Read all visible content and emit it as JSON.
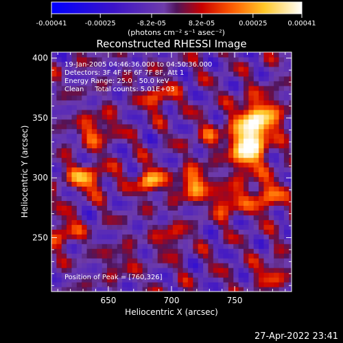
{
  "chart_data": {
    "type": "heatmap",
    "title": "Reconstructed RHESSI Image",
    "xlabel": "Heliocentric X (arcsec)",
    "ylabel": "Heliocentric Y (arcsec)",
    "xlim": [
      605,
      795
    ],
    "ylim": [
      205,
      405
    ],
    "xticks": [
      650,
      700,
      750
    ],
    "yticks": [
      250,
      300,
      350,
      400
    ],
    "colorbar": {
      "ticks": [
        "-0.00041",
        "-0.00025",
        "-8.2e-05",
        "8.2e-05",
        "0.00025",
        "0.00041"
      ],
      "range": [
        -0.00041,
        0.00041
      ],
      "unit_label": "(photons cm⁻² s⁻¹ asec⁻²)"
    },
    "annotations": [
      "19-Jan-2005 04:46:36.000 to 04:50:36.000",
      "Detectors: 3F 4F 5F 6F 7F 8F, Att 1",
      "Energy Range: 25.0 - 50.0 keV",
      "Clean     Total counts: 5.01E+03"
    ],
    "peak_label": "Position of Peak = [760,326]",
    "peak": {
      "x": 760,
      "y": 326
    },
    "sources": [
      {
        "x": 760,
        "y": 326,
        "sx": 9,
        "sy": 14,
        "amp": 1.0
      },
      {
        "x": 770,
        "y": 350,
        "sx": 12,
        "sy": 12,
        "amp": 0.75
      },
      {
        "x": 775,
        "y": 285,
        "sx": 9,
        "sy": 9,
        "amp": 0.55
      },
      {
        "x": 745,
        "y": 280,
        "sx": 8,
        "sy": 8,
        "amp": 0.55
      },
      {
        "x": 683,
        "y": 298,
        "sx": 7,
        "sy": 7,
        "amp": 0.75
      },
      {
        "x": 718,
        "y": 295,
        "sx": 9,
        "sy": 9,
        "amp": 0.65
      },
      {
        "x": 632,
        "y": 300,
        "sx": 12,
        "sy": 8,
        "amp": 0.55
      },
      {
        "x": 640,
        "y": 340,
        "sx": 10,
        "sy": 9,
        "amp": 0.45
      },
      {
        "x": 690,
        "y": 368,
        "sx": 8,
        "sy": 8,
        "amp": 0.45
      },
      {
        "x": 615,
        "y": 255,
        "sx": 8,
        "sy": 8,
        "amp": 0.45
      },
      {
        "x": 700,
        "y": 250,
        "sx": 8,
        "sy": 8,
        "amp": 0.35
      },
      {
        "x": 780,
        "y": 220,
        "sx": 10,
        "sy": 8,
        "amp": 0.35
      },
      {
        "x": 730,
        "y": 335,
        "sx": 8,
        "sy": 8,
        "amp": 0.3
      },
      {
        "x": 660,
        "y": 230,
        "sx": 8,
        "sy": 8,
        "amp": 0.25
      }
    ]
  },
  "footer": {
    "timestamp": "27-Apr-2022 23:41"
  }
}
